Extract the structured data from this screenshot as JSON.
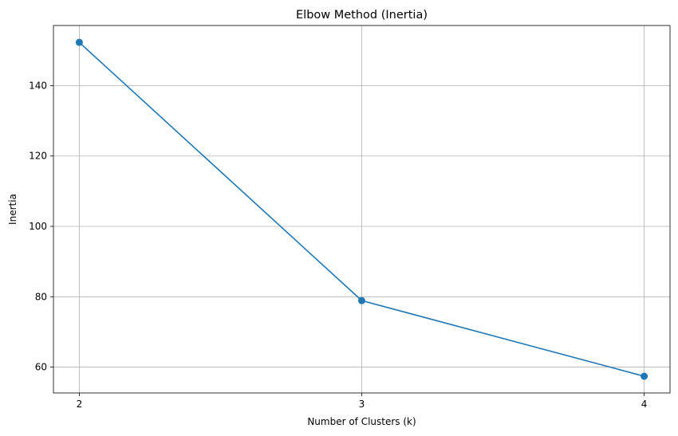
{
  "chart_data": {
    "type": "line",
    "title": "Elbow Method (Inertia)",
    "xlabel": "Number of Clusters (k)",
    "ylabel": "Inertia",
    "x": [
      2,
      3,
      4
    ],
    "series": [
      {
        "values": [
          152.3,
          78.9,
          57.4
        ],
        "color": "#1f77b4",
        "marker": "circle"
      }
    ],
    "xticks": [
      "2",
      "3",
      "4"
    ],
    "yticks": [
      60,
      80,
      100,
      120,
      140
    ],
    "xlim": [
      1.9085,
      4.0915
    ],
    "ylim": [
      52.65,
      157.1
    ],
    "grid": true
  }
}
